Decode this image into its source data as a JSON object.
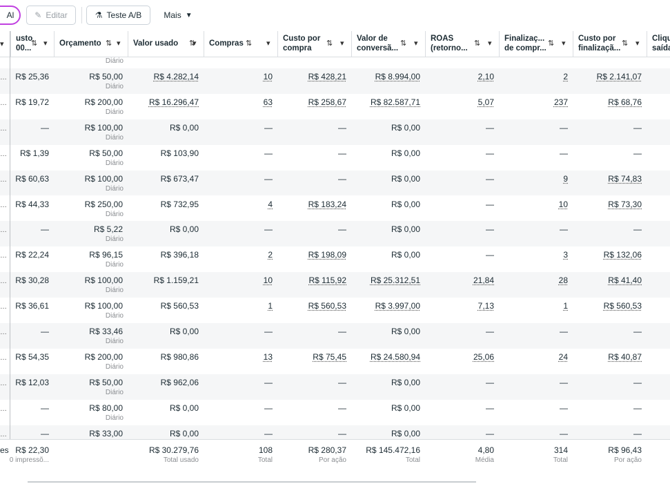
{
  "toolbar": {
    "cut_button": "Al",
    "edit": "Editar",
    "ab_test": "Teste A/B",
    "more": "Mais"
  },
  "table": {
    "headers": [
      [
        "usto",
        "00..."
      ],
      [
        "Orçamento"
      ],
      [
        "Valor usado"
      ],
      [
        "Compras"
      ],
      [
        "Custo por",
        "compra"
      ],
      [
        "Valor de",
        "conversã..."
      ],
      [
        "ROAS",
        "(retorno..."
      ],
      [
        "Finalizaç...",
        "de compr..."
      ],
      [
        "Custo por",
        "finalizaçã..."
      ],
      [
        "Cliqu",
        "saída"
      ]
    ],
    "partial_row_period": "Diário",
    "rows": [
      {
        "cells": [
          "R$ 25,36",
          "R$ 50,00",
          "R$ 4.282,14",
          "10",
          "R$ 428,21",
          "R$ 8.994,00",
          "2,10",
          "2",
          "R$ 2.141,07"
        ],
        "period": "Diário"
      },
      {
        "cells": [
          "R$ 19,72",
          "R$ 200,00",
          "R$ 16.296,47",
          "63",
          "R$ 258,67",
          "R$ 82.587,71",
          "5,07",
          "237",
          "R$ 68,76"
        ],
        "period": "Diário"
      },
      {
        "cells": [
          "—",
          "R$ 100,00",
          "R$ 0,00",
          "—",
          "—",
          "R$ 0,00",
          "—",
          "—",
          "—"
        ],
        "period": "Diário"
      },
      {
        "cells": [
          "R$ 1,39",
          "R$ 50,00",
          "R$ 103,90",
          "—",
          "—",
          "R$ 0,00",
          "—",
          "—",
          "—"
        ],
        "period": "Diário"
      },
      {
        "cells": [
          "R$ 60,63",
          "R$ 100,00",
          "R$ 673,47",
          "—",
          "—",
          "R$ 0,00",
          "—",
          "9",
          "R$ 74,83"
        ],
        "period": "Diário"
      },
      {
        "cells": [
          "R$ 44,33",
          "R$ 250,00",
          "R$ 732,95",
          "4",
          "R$ 183,24",
          "R$ 0,00",
          "—",
          "10",
          "R$ 73,30"
        ],
        "period": "Diário"
      },
      {
        "cells": [
          "—",
          "R$ 5,22",
          "R$ 0,00",
          "—",
          "—",
          "R$ 0,00",
          "—",
          "—",
          "—"
        ],
        "period": "Diário"
      },
      {
        "cells": [
          "R$ 22,24",
          "R$ 96,15",
          "R$ 396,18",
          "2",
          "R$ 198,09",
          "R$ 0,00",
          "—",
          "3",
          "R$ 132,06"
        ],
        "period": "Diário"
      },
      {
        "cells": [
          "R$ 30,28",
          "R$ 100,00",
          "R$ 1.159,21",
          "10",
          "R$ 115,92",
          "R$ 25.312,51",
          "21,84",
          "28",
          "R$ 41,40"
        ],
        "period": "Diário"
      },
      {
        "cells": [
          "R$ 36,61",
          "R$ 100,00",
          "R$ 560,53",
          "1",
          "R$ 560,53",
          "R$ 3.997,00",
          "7,13",
          "1",
          "R$ 560,53"
        ],
        "period": "Diário"
      },
      {
        "cells": [
          "—",
          "R$ 33,46",
          "R$ 0,00",
          "—",
          "—",
          "R$ 0,00",
          "—",
          "—",
          "—"
        ],
        "period": "Diário"
      },
      {
        "cells": [
          "R$ 54,35",
          "R$ 200,00",
          "R$ 980,86",
          "13",
          "R$ 75,45",
          "R$ 24.580,94",
          "25,06",
          "24",
          "R$ 40,87"
        ],
        "period": "Diário"
      },
      {
        "cells": [
          "R$ 12,03",
          "R$ 50,00",
          "R$ 962,06",
          "—",
          "—",
          "R$ 0,00",
          "—",
          "—",
          "—"
        ],
        "period": "Diário"
      },
      {
        "cells": [
          "—",
          "R$ 80,00",
          "R$ 0,00",
          "—",
          "—",
          "R$ 0,00",
          "—",
          "—",
          "—"
        ],
        "period": "Diário"
      },
      {
        "cells": [
          "—",
          "R$ 33,00",
          "R$ 0,00",
          "—",
          "—",
          "R$ 0,00",
          "—",
          "—",
          "—"
        ]
      }
    ],
    "totals": {
      "cut_label": "es",
      "cells": [
        {
          "value": "R$ 22,30",
          "note": "0 impressõ..."
        },
        null,
        {
          "value": "R$ 30.279,76",
          "note": "Total usado"
        },
        {
          "value": "108",
          "note": "Total"
        },
        {
          "value": "R$ 280,37",
          "note": "Por ação"
        },
        {
          "value": "R$ 145.472,16",
          "note": "Total"
        },
        {
          "value": "4,80",
          "note": "Média"
        },
        {
          "value": "314",
          "note": "Total"
        },
        {
          "value": "R$ 96,43",
          "note": "Por ação"
        }
      ]
    }
  }
}
